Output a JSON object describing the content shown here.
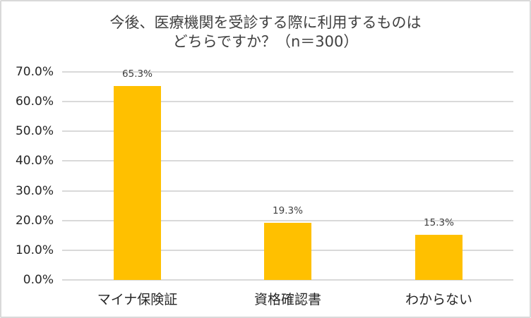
{
  "chart_data": {
    "type": "bar",
    "title": "今後、医療機関を受診する際に利用するものはどちらですか？（n＝300）",
    "title_lines": [
      "今後、医療機関を受診する際に利用するものは",
      "どちらですか？（n＝300）"
    ],
    "categories": [
      "マイナ保険証",
      "資格確認書",
      "わからない"
    ],
    "values": [
      65.3,
      19.3,
      15.3
    ],
    "data_labels": [
      "65.3%",
      "19.3%",
      "15.3%"
    ],
    "xlabel": "",
    "ylabel": "",
    "ylim": [
      0,
      70
    ],
    "yticks": [
      "0.0%",
      "10.0%",
      "20.0%",
      "30.0%",
      "40.0%",
      "50.0%",
      "60.0%",
      "70.0%"
    ],
    "grid": true,
    "legend": "none",
    "bar_color": "#ffc000"
  }
}
